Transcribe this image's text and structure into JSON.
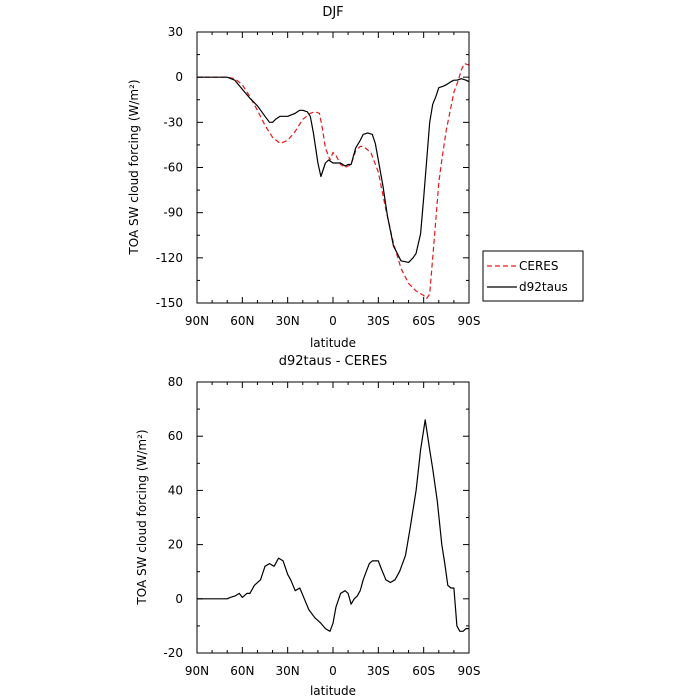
{
  "chart_data": [
    {
      "type": "line",
      "title": "DJF",
      "xlabel": "latitude",
      "ylabel": "TOA SW cloud forcing (W/m²)",
      "x_ticks": [
        -90,
        -60,
        -30,
        0,
        30,
        60,
        90
      ],
      "x_tick_labels": [
        "90N",
        "60N",
        "30N",
        "0",
        "30S",
        "60S",
        "90S"
      ],
      "xlim": [
        -90,
        90
      ],
      "ylim": [
        -150,
        30
      ],
      "y_ticks": [
        30,
        0,
        -30,
        -60,
        -90,
        -120,
        -150
      ],
      "y_tick_labels": [
        "30",
        "0",
        "-30",
        "-60",
        "-90",
        "-120",
        "-150"
      ],
      "grid": false,
      "legend_position": "right, outside plot",
      "series": [
        {
          "name": "CERES",
          "color": "#e41a1c",
          "dash": "dashed",
          "x": [
            -90,
            -80,
            -70,
            -65,
            -60,
            -55,
            -50,
            -45,
            -40,
            -35,
            -30,
            -25,
            -20,
            -15,
            -12,
            -9,
            -7,
            -5,
            -2,
            0,
            2,
            5,
            8,
            10,
            12,
            15,
            18,
            20,
            25,
            30,
            35,
            40,
            45,
            50,
            55,
            60,
            62,
            64,
            66,
            68,
            70,
            72,
            75,
            78,
            80,
            83,
            85,
            87,
            90
          ],
          "y": [
            0,
            0,
            0,
            -1,
            -5,
            -13,
            -22,
            -32,
            -40,
            -44,
            -42,
            -36,
            -28,
            -24,
            -23,
            -24,
            -34,
            -47,
            -55,
            -50,
            -52,
            -58,
            -60,
            -59,
            -58,
            -49,
            -46,
            -46,
            -50,
            -63,
            -88,
            -110,
            -127,
            -137,
            -142,
            -145,
            -147,
            -144,
            -120,
            -95,
            -70,
            -55,
            -35,
            -20,
            -10,
            -2,
            5,
            9,
            8
          ]
        },
        {
          "name": "d92taus",
          "color": "#000000",
          "dash": "solid",
          "x": [
            -90,
            -80,
            -70,
            -65,
            -60,
            -55,
            -50,
            -45,
            -42,
            -40,
            -38,
            -35,
            -30,
            -25,
            -22,
            -20,
            -17,
            -15,
            -13,
            -10,
            -8,
            -5,
            -3,
            0,
            3,
            5,
            8,
            10,
            12,
            15,
            18,
            20,
            23,
            26,
            28,
            30,
            33,
            36,
            40,
            45,
            50,
            53,
            55,
            58,
            60,
            62,
            64,
            66,
            68,
            70,
            73,
            75,
            78,
            80,
            82,
            85,
            88,
            90
          ],
          "y": [
            0,
            0,
            0,
            -2,
            -8,
            -14,
            -19,
            -26,
            -30,
            -30,
            -28,
            -26,
            -26,
            -24,
            -22,
            -22,
            -23,
            -26,
            -37,
            -57,
            -66,
            -57,
            -55,
            -57,
            -57,
            -57,
            -59,
            -58,
            -58,
            -47,
            -42,
            -38,
            -37,
            -38,
            -44,
            -55,
            -72,
            -92,
            -112,
            -122,
            -123,
            -120,
            -117,
            -104,
            -80,
            -55,
            -30,
            -18,
            -13,
            -7,
            -6,
            -5,
            -3,
            -2,
            -2,
            -1,
            -2,
            -3
          ]
        }
      ]
    },
    {
      "type": "line",
      "title": "d92taus - CERES",
      "xlabel": "latitude",
      "ylabel": "TOA SW cloud forcing (W/m²)",
      "x_ticks": [
        -90,
        -60,
        -30,
        0,
        30,
        60,
        90
      ],
      "x_tick_labels": [
        "90N",
        "60N",
        "30N",
        "0",
        "30S",
        "60S",
        "90S"
      ],
      "xlim": [
        -90,
        90
      ],
      "ylim": [
        -20,
        80
      ],
      "y_ticks": [
        80,
        60,
        40,
        20,
        0,
        -20
      ],
      "y_tick_labels": [
        "80",
        "60",
        "40",
        "20",
        "0",
        "-20"
      ],
      "grid": false,
      "series": [
        {
          "color": "#000000",
          "dash": "solid",
          "x": [
            -90,
            -80,
            -70,
            -68,
            -65,
            -62,
            -60,
            -57,
            -55,
            -52,
            -48,
            -45,
            -42,
            -39,
            -36,
            -33,
            -30,
            -28,
            -25,
            -22,
            -19,
            -16,
            -12,
            -8,
            -5,
            -2,
            0,
            2,
            5,
            8,
            10,
            12,
            14,
            16,
            18,
            20,
            22,
            24,
            26,
            28,
            30,
            32,
            35,
            38,
            41,
            44,
            48,
            51,
            55,
            58,
            61,
            64,
            66,
            69,
            72,
            74,
            76,
            78,
            80,
            82,
            84,
            86,
            88,
            90
          ],
          "y": [
            0,
            0,
            0,
            0.5,
            1,
            2,
            0.5,
            2,
            2,
            5,
            7,
            12,
            13,
            12,
            15,
            14,
            9,
            7,
            3,
            4,
            0,
            -4,
            -7,
            -9,
            -11,
            -12,
            -9,
            -3,
            2,
            3,
            2,
            -2,
            0,
            1,
            3,
            7,
            10,
            13,
            14,
            14,
            14,
            11,
            7,
            6,
            7,
            10,
            16,
            26,
            40,
            55,
            66,
            55,
            48,
            36,
            20,
            13,
            5,
            4,
            4,
            -10,
            -12,
            -12,
            -11,
            -11
          ]
        }
      ]
    }
  ],
  "legend": {
    "entries": [
      {
        "name": "CERES",
        "color": "#e41a1c",
        "dash": "dashed"
      },
      {
        "name": "d92taus",
        "color": "#000000",
        "dash": "solid"
      }
    ]
  }
}
